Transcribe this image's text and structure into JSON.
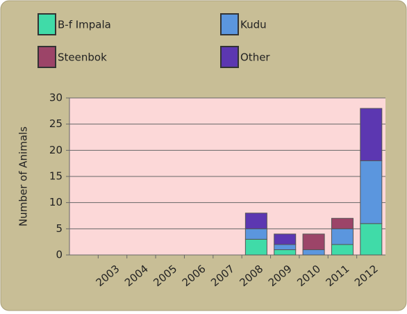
{
  "chart_data": {
    "type": "stacked-bar",
    "y_label": "Number of Animals",
    "categories": [
      "2003",
      "2004",
      "2005",
      "2006",
      "2007",
      "2008",
      "2009",
      "2010",
      "2011",
      "2012"
    ],
    "series": [
      {
        "name": "B-f Impala",
        "color": "#40dba8",
        "values": [
          0,
          0,
          0,
          0,
          0,
          3,
          1,
          0,
          2,
          6
        ]
      },
      {
        "name": "Kudu",
        "color": "#5b96de",
        "values": [
          0,
          0,
          0,
          0,
          0,
          2,
          1,
          1,
          3,
          12
        ]
      },
      {
        "name": "Steenbok",
        "color": "#9c4468",
        "values": [
          0,
          0,
          0,
          0,
          0,
          0,
          0,
          3,
          2,
          0
        ]
      },
      {
        "name": "Other",
        "color": "#5c37b1",
        "values": [
          0,
          0,
          0,
          0,
          0,
          3,
          2,
          0,
          0,
          10
        ]
      }
    ],
    "ylim": [
      0,
      30
    ],
    "yticks": [
      0,
      5,
      10,
      15,
      20,
      25,
      30
    ],
    "grid": true,
    "legend": "top"
  }
}
